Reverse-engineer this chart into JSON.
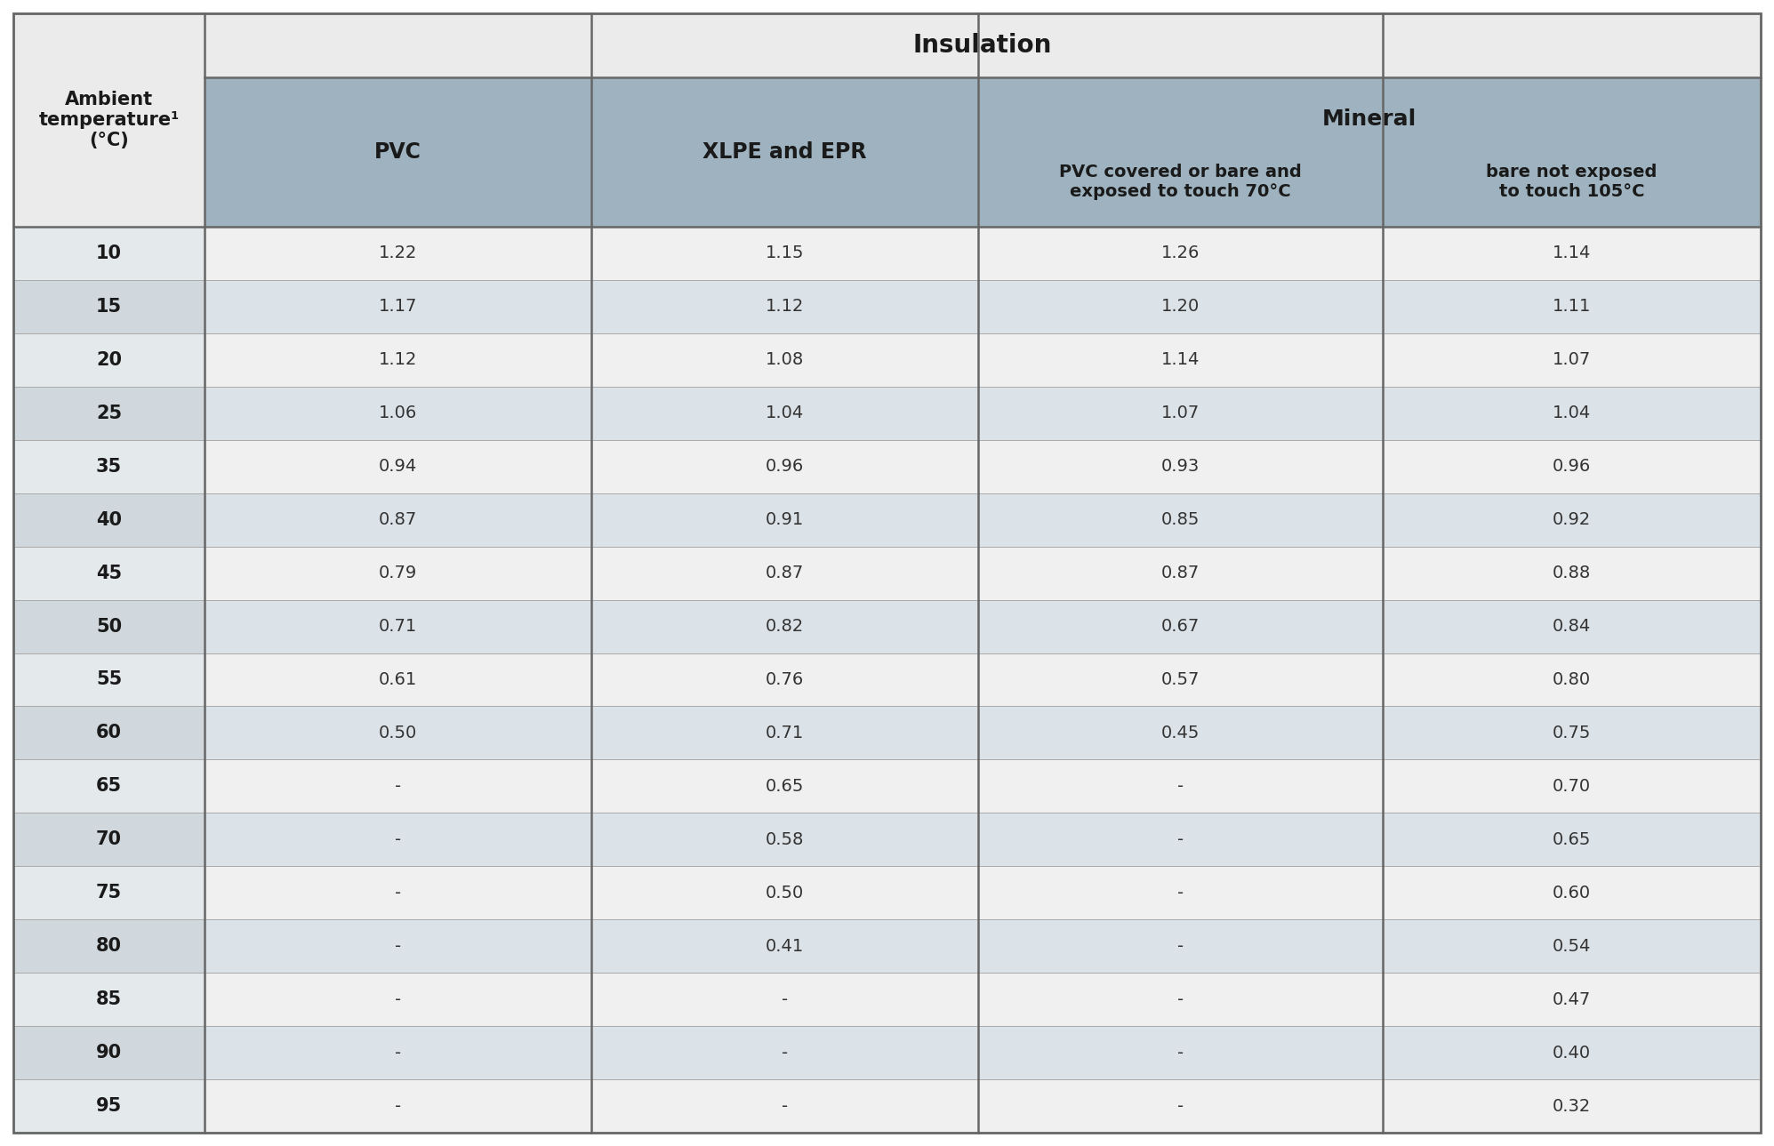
{
  "title_row": "Insulation",
  "mineral_header": "Mineral",
  "ambient_header": "Ambient\ntemperature¹\n(°C)",
  "pvc_header": "PVC",
  "xlpe_header": "XLPE and EPR",
  "mineral_pvc_header": "PVC covered or bare and\nexposed to touch 70°C",
  "mineral_bare_header": "bare not exposed\nto touch 105°C",
  "temperatures": [
    "10",
    "15",
    "20",
    "25",
    "35",
    "40",
    "45",
    "50",
    "55",
    "60",
    "65",
    "70",
    "75",
    "80",
    "85",
    "90",
    "95"
  ],
  "pvc": [
    "1.22",
    "1.17",
    "1.12",
    "1.06",
    "0.94",
    "0.87",
    "0.79",
    "0.71",
    "0.61",
    "0.50",
    "-",
    "-",
    "-",
    "-",
    "-",
    "-",
    "-"
  ],
  "xlpe_epr": [
    "1.15",
    "1.12",
    "1.08",
    "1.04",
    "0.96",
    "0.91",
    "0.87",
    "0.82",
    "0.76",
    "0.71",
    "0.65",
    "0.58",
    "0.50",
    "0.41",
    "-",
    "-",
    "-"
  ],
  "mineral_pvc": [
    "1.26",
    "1.20",
    "1.14",
    "1.07",
    "0.93",
    "0.85",
    "0.87",
    "0.67",
    "0.57",
    "0.45",
    "-",
    "-",
    "-",
    "-",
    "-",
    "-",
    "-"
  ],
  "mineral_bare": [
    "1.14",
    "1.11",
    "1.07",
    "1.04",
    "0.96",
    "0.92",
    "0.88",
    "0.84",
    "0.80",
    "0.75",
    "0.70",
    "0.65",
    "0.60",
    "0.54",
    "0.47",
    "0.40",
    "0.32"
  ],
  "color_header_top_bg": "#ebebeb",
  "color_header_sub_bg": "#9eb3bf",
  "color_row_light": "#f0f0f0",
  "color_row_dark": "#dce3e8",
  "color_first_col_light": "#e4e9ec",
  "color_first_col_dark": "#d0d8dd",
  "text_color_dark": "#1a1a1a",
  "text_color_data": "#333333",
  "border_color": "#777777",
  "line_color_thick": "#666666",
  "line_color_thin": "#aaaaaa"
}
